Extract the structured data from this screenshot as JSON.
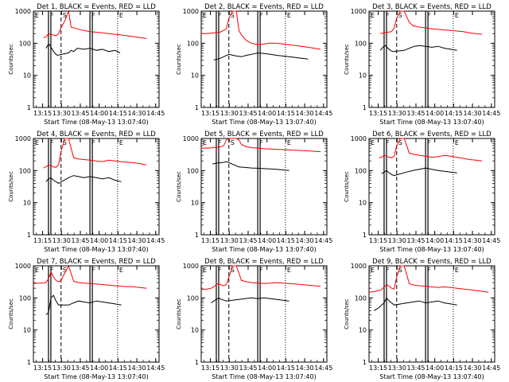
{
  "figure": {
    "title_template": "Det {n}, BLACK = Events, RED = LLD",
    "panel_numbers": [
      1,
      2,
      3,
      4,
      5,
      6,
      7,
      8,
      9
    ],
    "xlabel": "Start Time (08-May-13 13:07:40)",
    "ylabel": "Counts/sec",
    "xticks": [
      "13:15",
      "13:30",
      "13:45",
      "14:00",
      "14:15",
      "14:30",
      "14:45"
    ],
    "yticks": [
      "1",
      "10",
      "100",
      "1000"
    ],
    "markers": [
      {
        "label": "E",
        "t": 0,
        "style": "dotted"
      },
      {
        "label": "F",
        "t": 12,
        "style": "solid"
      },
      {
        "label": "S",
        "t": 22,
        "style": "dashed"
      },
      {
        "label": "F",
        "t": 45,
        "style": "solid"
      },
      {
        "label": "E",
        "t": 67,
        "style": "dotted"
      }
    ],
    "colors": {
      "events": "#000000",
      "lld": "#ff0000"
    }
  },
  "chart_data": [
    {
      "type": "line",
      "title": "Det 1, BLACK = Events, RED = LLD",
      "xlabel": "Start Time (08-May-13 13:07:40)",
      "ylabel": "Counts/sec",
      "y_scale": "log",
      "ylim": [
        1,
        1000
      ],
      "xlim": [
        "13:07:40",
        "14:47:40"
      ],
      "series": [
        {
          "name": "Events",
          "x": [
            10,
            11,
            12,
            13,
            14,
            15,
            16,
            17,
            18,
            19,
            28,
            30,
            32,
            35,
            40,
            45,
            50,
            55,
            60,
            65,
            69
          ],
          "y": [
            70,
            80,
            95,
            90,
            75,
            65,
            55,
            50,
            45,
            42,
            50,
            60,
            55,
            70,
            65,
            70,
            60,
            65,
            55,
            60,
            50
          ]
        },
        {
          "name": "LLD",
          "x": [
            8,
            10,
            12,
            14,
            16,
            18,
            20,
            22,
            25,
            28,
            30,
            35,
            40,
            45,
            50,
            55,
            60,
            65,
            70,
            75,
            80,
            85,
            90
          ],
          "y": [
            150,
            155,
            200,
            190,
            180,
            170,
            200,
            300,
            500,
            1000,
            320,
            280,
            250,
            230,
            220,
            210,
            200,
            190,
            180,
            170,
            160,
            150,
            140
          ]
        }
      ]
    },
    {
      "type": "line",
      "title": "Det 2, BLACK = Events, RED = LLD",
      "xlabel": "Start Time (08-May-13 13:07:40)",
      "ylabel": "Counts/sec",
      "y_scale": "log",
      "ylim": [
        1,
        1000
      ],
      "xlim": [
        "13:07:40",
        "14:47:40"
      ],
      "series": [
        {
          "name": "Events",
          "x": [
            10,
            13,
            16,
            19,
            22,
            28,
            32,
            36,
            40,
            45,
            50,
            55,
            60,
            65,
            70,
            75,
            80,
            85
          ],
          "y": [
            30,
            32,
            35,
            40,
            45,
            40,
            38,
            42,
            45,
            50,
            48,
            45,
            42,
            40,
            38,
            36,
            34,
            32
          ]
        },
        {
          "name": "LLD",
          "x": [
            0,
            5,
            10,
            15,
            20,
            22,
            25,
            28,
            30,
            32,
            36,
            40,
            45,
            50,
            55,
            60,
            65,
            70,
            75,
            80,
            85,
            90,
            95
          ],
          "y": [
            200,
            200,
            210,
            220,
            280,
            600,
            1000,
            1000,
            250,
            180,
            120,
            100,
            90,
            95,
            100,
            100,
            95,
            90,
            85,
            80,
            75,
            70,
            65
          ]
        }
      ]
    },
    {
      "type": "line",
      "title": "Det 3, BLACK = Events, RED = LLD",
      "xlabel": "Start Time (08-May-13 13:07:40)",
      "ylabel": "Counts/sec",
      "y_scale": "log",
      "ylim": [
        1,
        1000
      ],
      "xlim": [
        "13:07:40",
        "14:47:40"
      ],
      "series": [
        {
          "name": "Events",
          "x": [
            9,
            11,
            13,
            15,
            17,
            19,
            28,
            32,
            36,
            40,
            45,
            50,
            55,
            60,
            65,
            70
          ],
          "y": [
            60,
            75,
            85,
            70,
            60,
            55,
            60,
            70,
            80,
            85,
            80,
            75,
            80,
            70,
            65,
            60
          ]
        },
        {
          "name": "LLD",
          "x": [
            9,
            12,
            15,
            18,
            20,
            22,
            25,
            28,
            32,
            35,
            40,
            45,
            50,
            55,
            60,
            65,
            70,
            75,
            80,
            85,
            90
          ],
          "y": [
            200,
            210,
            220,
            230,
            300,
            600,
            1000,
            1000,
            450,
            350,
            320,
            300,
            280,
            270,
            260,
            250,
            240,
            230,
            210,
            200,
            190
          ]
        }
      ]
    },
    {
      "type": "line",
      "title": "Det 4, BLACK = Events, RED = LLD",
      "xlabel": "Start Time (08-May-13 13:07:40)",
      "ylabel": "Counts/sec",
      "y_scale": "log",
      "ylim": [
        1,
        1000
      ],
      "xlim": [
        "13:07:40",
        "14:47:40"
      ],
      "series": [
        {
          "name": "Events",
          "x": [
            10,
            12,
            14,
            16,
            18,
            20,
            28,
            32,
            36,
            40,
            45,
            50,
            55,
            60,
            65,
            70
          ],
          "y": [
            45,
            55,
            60,
            50,
            45,
            40,
            60,
            70,
            65,
            60,
            65,
            60,
            55,
            60,
            50,
            45
          ]
        },
        {
          "name": "LLD",
          "x": [
            8,
            10,
            12,
            14,
            16,
            18,
            20,
            22,
            25,
            28,
            32,
            36,
            40,
            45,
            50,
            55,
            60,
            65,
            70,
            75,
            80,
            85,
            90
          ],
          "y": [
            120,
            130,
            150,
            140,
            130,
            125,
            150,
            400,
            1000,
            1000,
            250,
            230,
            220,
            210,
            200,
            190,
            210,
            200,
            190,
            180,
            175,
            165,
            150
          ]
        }
      ]
    },
    {
      "type": "line",
      "title": "Det 5, BLACK = Events, RED = LLD",
      "xlabel": "Start Time (08-May-13 13:07:40)",
      "ylabel": "Counts/sec",
      "y_scale": "log",
      "ylim": [
        1,
        1000
      ],
      "xlim": [
        "13:07:40",
        "14:47:40"
      ],
      "series": [
        {
          "name": "Events",
          "x": [
            9,
            12,
            15,
            18,
            20,
            30,
            35,
            40,
            45,
            50,
            55,
            60,
            65,
            70
          ],
          "y": [
            160,
            170,
            175,
            180,
            190,
            130,
            125,
            120,
            118,
            115,
            112,
            110,
            105,
            100
          ]
        },
        {
          "name": "LLD",
          "x": [
            0,
            5,
            10,
            15,
            18,
            20,
            22,
            25,
            28,
            30,
            32,
            36,
            40,
            45,
            50,
            55,
            60,
            65,
            70,
            75,
            80,
            85,
            90,
            95
          ],
          "y": [
            500,
            500,
            520,
            540,
            600,
            900,
            1000,
            1000,
            1000,
            900,
            650,
            550,
            520,
            500,
            480,
            470,
            460,
            450,
            440,
            430,
            420,
            410,
            400,
            390
          ]
        }
      ]
    },
    {
      "type": "line",
      "title": "Det 6, BLACK = Events, RED = LLD",
      "xlabel": "Start Time (08-May-13 13:07:40)",
      "ylabel": "Counts/sec",
      "y_scale": "log",
      "ylim": [
        1,
        1000
      ],
      "xlim": [
        "13:07:40",
        "14:47:40"
      ],
      "series": [
        {
          "name": "Events",
          "x": [
            10,
            12,
            14,
            16,
            18,
            20,
            30,
            35,
            40,
            45,
            50,
            55,
            60,
            65,
            70
          ],
          "y": [
            80,
            90,
            100,
            85,
            75,
            70,
            90,
            100,
            110,
            120,
            110,
            100,
            95,
            90,
            85
          ]
        },
        {
          "name": "LLD",
          "x": [
            8,
            10,
            12,
            14,
            16,
            18,
            20,
            22,
            25,
            28,
            32,
            36,
            40,
            45,
            50,
            55,
            60,
            65,
            70,
            75,
            80,
            85,
            90
          ],
          "y": [
            250,
            260,
            300,
            280,
            260,
            250,
            280,
            600,
            1000,
            1000,
            350,
            320,
            300,
            280,
            260,
            270,
            300,
            280,
            260,
            240,
            220,
            210,
            200
          ]
        }
      ]
    },
    {
      "type": "line",
      "title": "Det 7, BLACK = Events, RED = LLD",
      "xlabel": "Start Time (08-May-13 13:07:40)",
      "ylabel": "Counts/sec",
      "y_scale": "log",
      "ylim": [
        1,
        1000
      ],
      "xlim": [
        "13:07:40",
        "14:47:40"
      ],
      "series": [
        {
          "name": "Events",
          "x": [
            10,
            12,
            14,
            16,
            18,
            20,
            28,
            32,
            36,
            40,
            45,
            50,
            55,
            60,
            65,
            70
          ],
          "y": [
            30,
            35,
            100,
            120,
            80,
            60,
            60,
            70,
            80,
            75,
            70,
            80,
            75,
            70,
            65,
            60
          ]
        },
        {
          "name": "LLD",
          "x": [
            0,
            5,
            10,
            12,
            14,
            16,
            18,
            20,
            22,
            25,
            28,
            32,
            36,
            40,
            45,
            50,
            55,
            60,
            65,
            70,
            75,
            80,
            85,
            90
          ],
          "y": [
            280,
            290,
            300,
            400,
            650,
            450,
            350,
            320,
            350,
            600,
            1000,
            330,
            300,
            290,
            280,
            270,
            260,
            250,
            240,
            230,
            225,
            220,
            210,
            200
          ]
        }
      ]
    },
    {
      "type": "line",
      "title": "Det 8, BLACK = Events, RED = LLD",
      "xlabel": "Start Time (08-May-13 13:07:40)",
      "ylabel": "Counts/sec",
      "y_scale": "log",
      "ylim": [
        1,
        1000
      ],
      "xlim": [
        "13:07:40",
        "14:47:40"
      ],
      "series": [
        {
          "name": "Events",
          "x": [
            8,
            10,
            12,
            14,
            16,
            18,
            20,
            30,
            35,
            40,
            45,
            50,
            55,
            60,
            65,
            70
          ],
          "y": [
            70,
            80,
            90,
            100,
            90,
            85,
            80,
            90,
            95,
            100,
            95,
            100,
            95,
            90,
            85,
            80
          ]
        },
        {
          "name": "LLD",
          "x": [
            0,
            5,
            8,
            10,
            12,
            14,
            16,
            18,
            20,
            22,
            25,
            28,
            32,
            36,
            40,
            45,
            50,
            55,
            60,
            65,
            70,
            75,
            80,
            85,
            90,
            95
          ],
          "y": [
            180,
            190,
            200,
            220,
            260,
            280,
            250,
            240,
            260,
            450,
            1000,
            1000,
            350,
            320,
            300,
            290,
            280,
            290,
            300,
            290,
            280,
            270,
            260,
            250,
            240,
            230
          ]
        }
      ]
    },
    {
      "type": "line",
      "title": "Det 9, BLACK = Events, RED = LLD",
      "xlabel": "Start Time (08-May-13 13:07:40)",
      "ylabel": "Counts/sec",
      "y_scale": "log",
      "ylim": [
        1,
        1000
      ],
      "xlim": [
        "13:07:40",
        "14:47:40"
      ],
      "series": [
        {
          "name": "Events",
          "x": [
            4,
            6,
            8,
            10,
            12,
            14,
            16,
            18,
            20,
            30,
            35,
            40,
            45,
            50,
            55,
            60,
            65,
            70
          ],
          "y": [
            40,
            45,
            50,
            60,
            70,
            100,
            80,
            70,
            60,
            70,
            75,
            80,
            70,
            75,
            80,
            70,
            65,
            60
          ]
        },
        {
          "name": "LLD",
          "x": [
            0,
            5,
            8,
            10,
            12,
            14,
            16,
            18,
            20,
            22,
            25,
            28,
            32,
            36,
            40,
            45,
            50,
            55,
            60,
            65,
            70,
            75,
            80,
            85,
            90,
            95
          ],
          "y": [
            150,
            160,
            170,
            180,
            220,
            260,
            230,
            200,
            190,
            450,
            1000,
            1000,
            280,
            250,
            240,
            230,
            220,
            210,
            220,
            210,
            200,
            190,
            180,
            170,
            160,
            150
          ]
        }
      ]
    }
  ]
}
